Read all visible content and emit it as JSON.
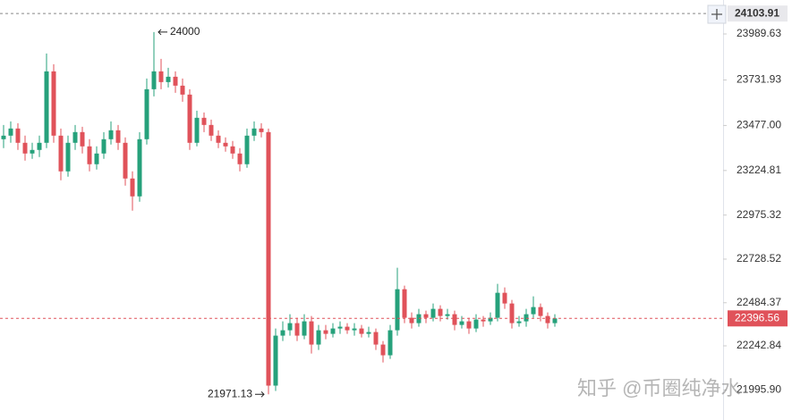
{
  "chart_data": {
    "type": "candlestick",
    "open": [
      23400,
      23420,
      23460,
      23380,
      23320,
      23340,
      23380,
      23780,
      23420,
      23220,
      23380,
      23440,
      23360,
      23260,
      23320,
      23400,
      23450,
      23380,
      23180,
      23080,
      23400,
      23680,
      23780,
      23720,
      23750,
      23700,
      23650,
      23380,
      23520,
      23480,
      23420,
      23380,
      23360,
      23320,
      23260,
      23420,
      23460,
      23440,
      22020,
      22300,
      22330,
      22370,
      22300,
      22380,
      22250,
      22330,
      22310,
      22340,
      22350,
      22330,
      22340,
      22310,
      22320,
      22250,
      22190,
      22330,
      22560,
      22400,
      22370,
      22420,
      22400,
      22450,
      22410,
      22420,
      22360,
      22380,
      22340,
      22390,
      22380,
      22400,
      22540,
      22480,
      22370,
      22380,
      22420,
      22460,
      22410,
      22370
    ],
    "high": [
      23480,
      23500,
      23490,
      23420,
      23380,
      23420,
      23880,
      23820,
      23460,
      23420,
      23480,
      23470,
      23400,
      23360,
      23440,
      23500,
      23480,
      23410,
      23220,
      23440,
      23740,
      24000,
      23850,
      23800,
      23780,
      23740,
      23680,
      23560,
      23550,
      23510,
      23450,
      23410,
      23390,
      23350,
      23460,
      23500,
      23490,
      23460,
      22340,
      22380,
      22420,
      22400,
      22420,
      22410,
      22360,
      22360,
      22370,
      22380,
      22370,
      22370,
      22360,
      22350,
      22340,
      22270,
      22360,
      22680,
      22580,
      22430,
      22450,
      22440,
      22480,
      22470,
      22450,
      22440,
      22410,
      22400,
      22420,
      22410,
      22430,
      22590,
      22570,
      22500,
      22410,
      22450,
      22520,
      22480,
      22430,
      22420
    ],
    "low": [
      23350,
      23380,
      23340,
      23280,
      23290,
      23300,
      23350,
      23380,
      23170,
      23190,
      23340,
      23320,
      23220,
      23230,
      23290,
      23370,
      23340,
      23140,
      23000,
      23050,
      23370,
      23640,
      23680,
      23690,
      23660,
      23610,
      23340,
      23360,
      23440,
      23390,
      23350,
      23330,
      23290,
      23220,
      23240,
      23390,
      23410,
      21971.13,
      21990,
      22270,
      22300,
      22270,
      22280,
      22200,
      22220,
      22280,
      22290,
      22310,
      22310,
      22300,
      22290,
      22290,
      22220,
      22150,
      22170,
      22300,
      22370,
      22340,
      22350,
      22370,
      22380,
      22380,
      22390,
      22330,
      22340,
      22310,
      22320,
      22350,
      22360,
      22380,
      22450,
      22340,
      22350,
      22350,
      22400,
      22380,
      22340,
      22350
    ],
    "close": [
      23420,
      23460,
      23380,
      23320,
      23340,
      23380,
      23780,
      23420,
      23220,
      23380,
      23440,
      23360,
      23260,
      23320,
      23400,
      23450,
      23380,
      23180,
      23080,
      23400,
      23680,
      23780,
      23720,
      23750,
      23700,
      23650,
      23380,
      23520,
      23480,
      23420,
      23380,
      23360,
      23320,
      23260,
      23420,
      23460,
      23440,
      22020,
      22300,
      22330,
      22370,
      22300,
      22380,
      22250,
      22330,
      22310,
      22340,
      22350,
      22330,
      22340,
      22310,
      22320,
      22250,
      22190,
      22330,
      22560,
      22400,
      22370,
      22420,
      22400,
      22450,
      22410,
      22420,
      22360,
      22380,
      22340,
      22390,
      22380,
      22400,
      22540,
      22480,
      22370,
      22380,
      22420,
      22460,
      22410,
      22370,
      22396.56
    ],
    "up_color": "#26a17b",
    "down_color": "#e0525a",
    "ylim": [
      21827.5,
      24179.8
    ],
    "yticks": [
      23989.63,
      23731.93,
      {
        "value": 23477,
        "label": "23477.00"
      },
      23224.81,
      22975.32,
      22728.52,
      22484.37,
      22242.84,
      {
        "value": 21995.9,
        "label": "21995.90"
      }
    ],
    "grid": false,
    "reference_price": 24103.91,
    "last_price": 22396.56,
    "high_annotation": 24000,
    "low_annotation": 21971.13,
    "watermark": "知乎 @币圈纯净水"
  }
}
